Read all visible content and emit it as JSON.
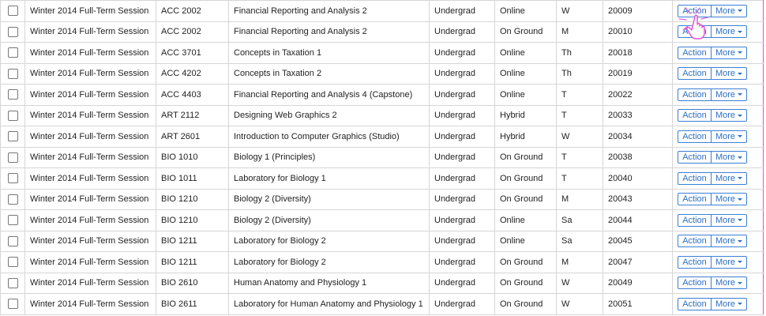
{
  "table": {
    "rows": [
      {
        "term": "Winter 2014 Full-Term Session",
        "course": "ACC 2002",
        "title": "Financial Reporting and Analysis 2",
        "level": "Undergrad",
        "delivery": "Online",
        "day": "W",
        "crn": "20009",
        "action_label": "Action",
        "more_label": "More"
      },
      {
        "term": "Winter 2014 Full-Term Session",
        "course": "ACC 2002",
        "title": "Financial Reporting and Analysis 2",
        "level": "Undergrad",
        "delivery": "On Ground",
        "day": "M",
        "crn": "20010",
        "action_label": "Action",
        "more_label": "More"
      },
      {
        "term": "Winter 2014 Full-Term Session",
        "course": "ACC 3701",
        "title": "Concepts in Taxation 1",
        "level": "Undergrad",
        "delivery": "Online",
        "day": "Th",
        "crn": "20018",
        "action_label": "Action",
        "more_label": "More"
      },
      {
        "term": "Winter 2014 Full-Term Session",
        "course": "ACC 4202",
        "title": "Concepts in Taxation 2",
        "level": "Undergrad",
        "delivery": "Online",
        "day": "Th",
        "crn": "20019",
        "action_label": "Action",
        "more_label": "More"
      },
      {
        "term": "Winter 2014 Full-Term Session",
        "course": "ACC 4403",
        "title": "Financial Reporting and Analysis 4 (Capstone)",
        "level": "Undergrad",
        "delivery": "Online",
        "day": "T",
        "crn": "20022",
        "action_label": "Action",
        "more_label": "More"
      },
      {
        "term": "Winter 2014 Full-Term Session",
        "course": "ART 2112",
        "title": "Designing Web Graphics 2",
        "level": "Undergrad",
        "delivery": "Hybrid",
        "day": "T",
        "crn": "20033",
        "action_label": "Action",
        "more_label": "More"
      },
      {
        "term": "Winter 2014 Full-Term Session",
        "course": "ART 2601",
        "title": "Introduction to Computer Graphics (Studio)",
        "level": "Undergrad",
        "delivery": "Hybrid",
        "day": "W",
        "crn": "20034",
        "action_label": "Action",
        "more_label": "More"
      },
      {
        "term": "Winter 2014 Full-Term Session",
        "course": "BIO 1010",
        "title": "Biology 1 (Principles)",
        "level": "Undergrad",
        "delivery": "On Ground",
        "day": "T",
        "crn": "20038",
        "action_label": "Action",
        "more_label": "More"
      },
      {
        "term": "Winter 2014 Full-Term Session",
        "course": "BIO 1011",
        "title": "Laboratory for Biology 1",
        "level": "Undergrad",
        "delivery": "On Ground",
        "day": "T",
        "crn": "20040",
        "action_label": "Action",
        "more_label": "More"
      },
      {
        "term": "Winter 2014 Full-Term Session",
        "course": "BIO 1210",
        "title": "Biology 2 (Diversity)",
        "level": "Undergrad",
        "delivery": "On Ground",
        "day": "M",
        "crn": "20043",
        "action_label": "Action",
        "more_label": "More"
      },
      {
        "term": "Winter 2014 Full-Term Session",
        "course": "BIO 1210",
        "title": "Biology 2 (Diversity)",
        "level": "Undergrad",
        "delivery": "Online",
        "day": "Sa",
        "crn": "20044",
        "action_label": "Action",
        "more_label": "More"
      },
      {
        "term": "Winter 2014 Full-Term Session",
        "course": "BIO 1211",
        "title": "Laboratory for Biology 2",
        "level": "Undergrad",
        "delivery": "Online",
        "day": "Sa",
        "crn": "20045",
        "action_label": "Action",
        "more_label": "More"
      },
      {
        "term": "Winter 2014 Full-Term Session",
        "course": "BIO 1211",
        "title": "Laboratory for Biology 2",
        "level": "Undergrad",
        "delivery": "On Ground",
        "day": "M",
        "crn": "20047",
        "action_label": "Action",
        "more_label": "More"
      },
      {
        "term": "Winter 2014 Full-Term Session",
        "course": "BIO 2610",
        "title": "Human Anatomy and Physiology 1",
        "level": "Undergrad",
        "delivery": "On Ground",
        "day": "W",
        "crn": "20049",
        "action_label": "Action",
        "more_label": "More"
      },
      {
        "term": "Winter 2014 Full-Term Session",
        "course": "BIO 2611",
        "title": "Laboratory for Human Anatomy and Physiology 1",
        "level": "Undergrad",
        "delivery": "On Ground",
        "day": "W",
        "crn": "20051",
        "action_label": "Action",
        "more_label": "More"
      }
    ]
  },
  "cursor": {
    "icon": "hand-pointer-icon",
    "highlight_color": "#e34ed6"
  },
  "colors": {
    "button_accent": "#2d6fc4",
    "grid_border": "#d6d6d6",
    "highlight": "#e34ed6"
  }
}
